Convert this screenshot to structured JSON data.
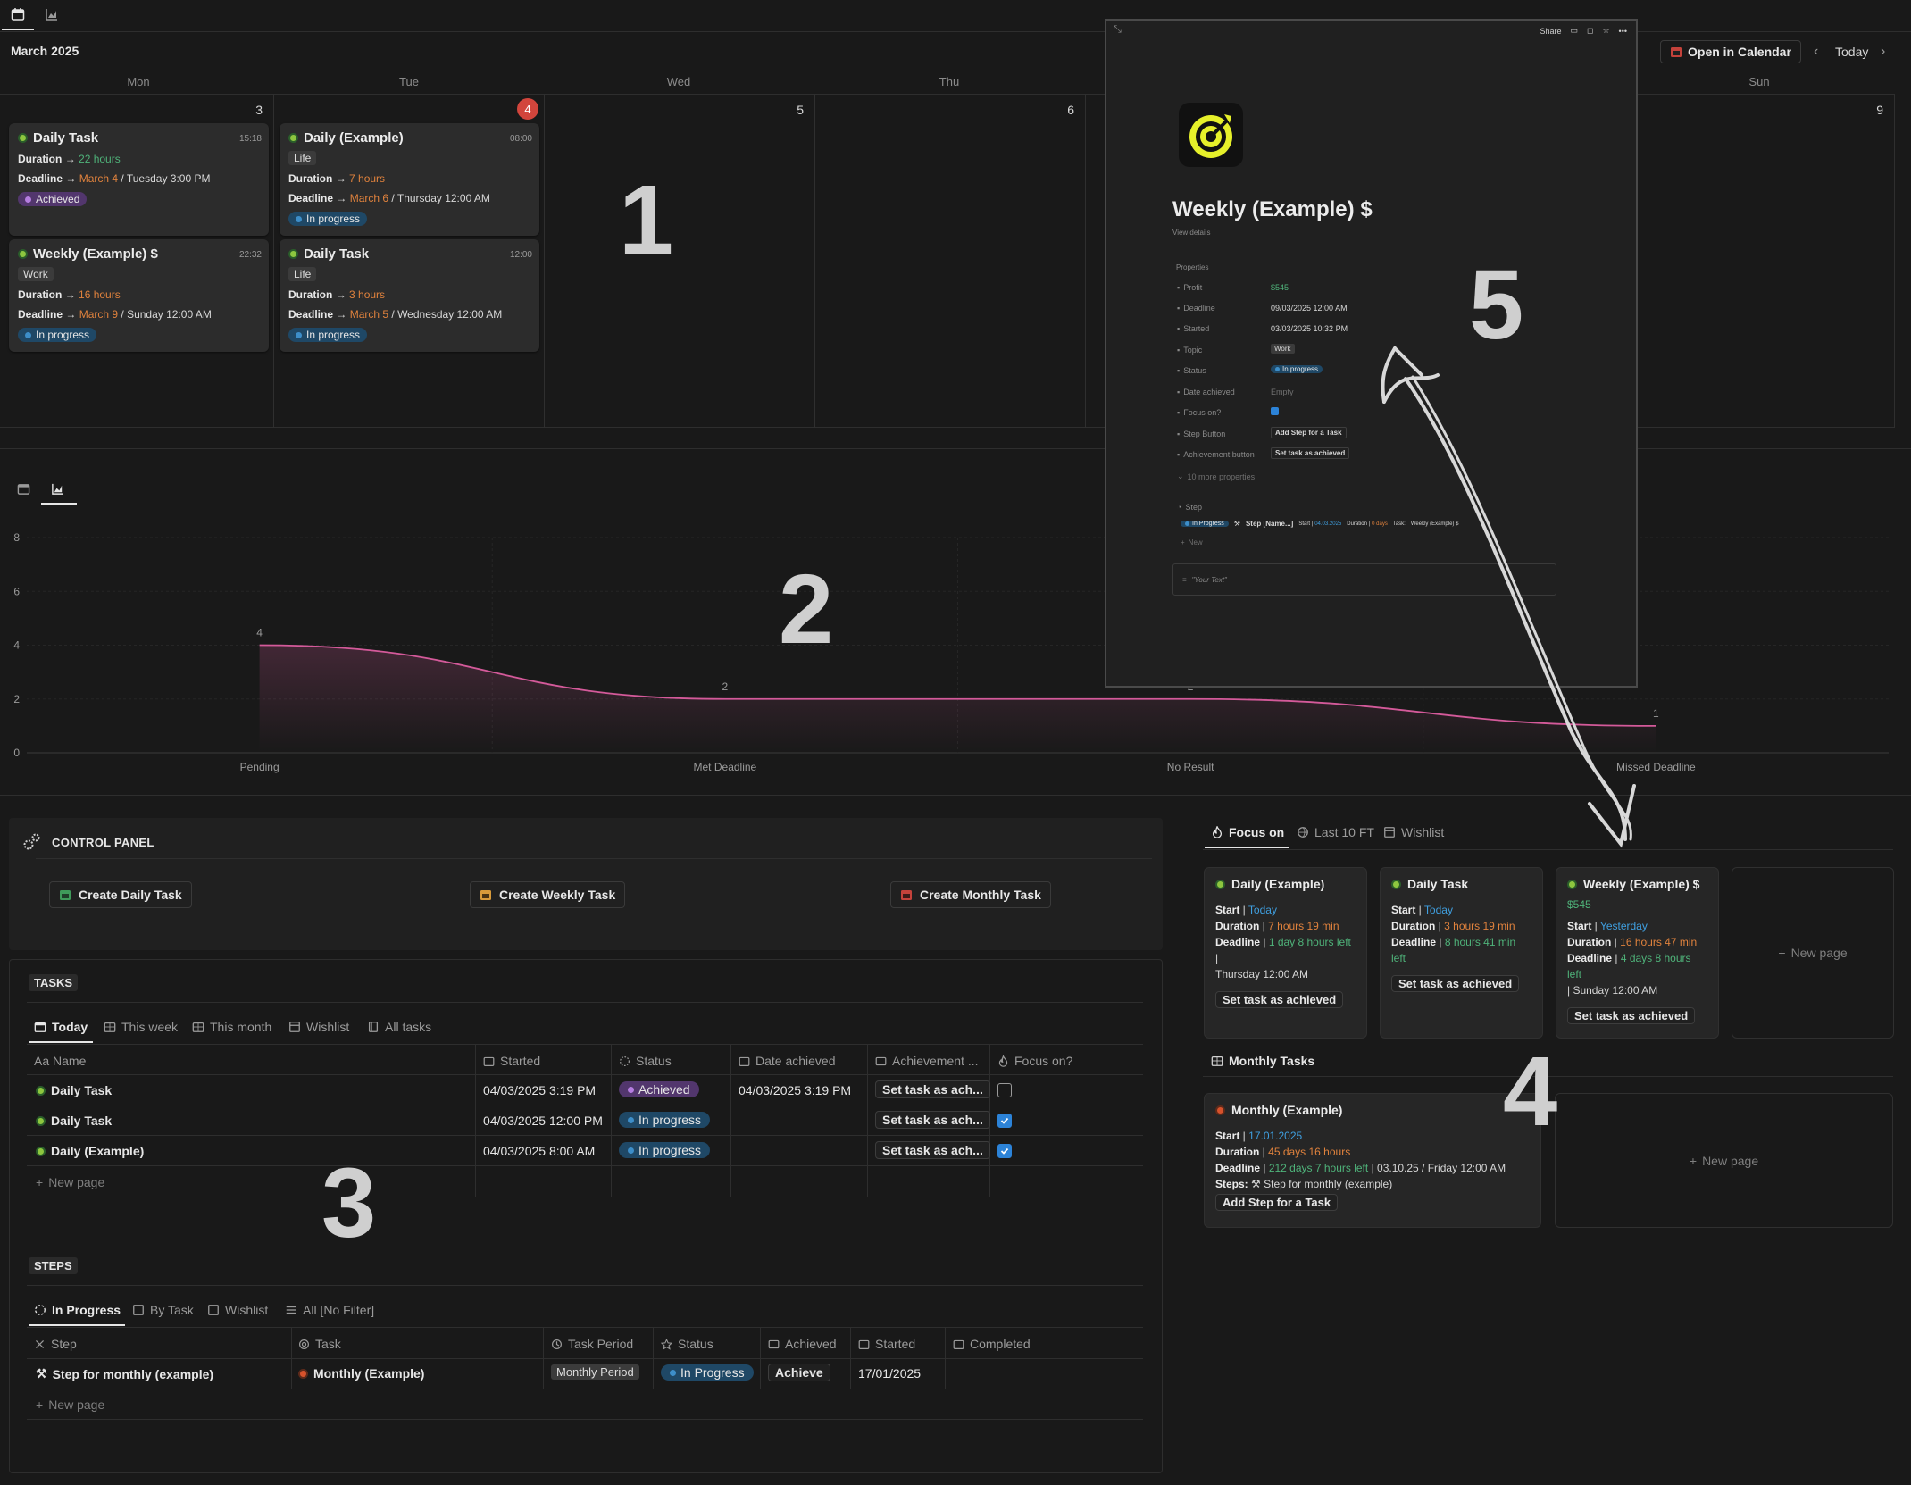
{
  "calendar": {
    "month": "March 2025",
    "open_label": "Open in Calendar",
    "today_label": "Today",
    "days": [
      "Mon",
      "Tue",
      "Wed",
      "Thu",
      "Sun"
    ],
    "daynums": [
      "3",
      "4",
      "5",
      "6",
      "9"
    ],
    "cards": [
      {
        "title": "Daily Task",
        "time": "15:18",
        "dur": "22 hours",
        "deadline_date": "March 4",
        "deadline_rest": "/ Tuesday 3:00 PM",
        "status": "Achieved"
      },
      {
        "title": "Weekly (Example) $",
        "time": "22:32",
        "tag": "Work",
        "dur": "16 hours",
        "deadline_date": "March 9",
        "deadline_rest": "/ Sunday 12:00 AM",
        "status": "In progress"
      },
      {
        "title": "Daily (Example)",
        "time": "08:00",
        "tag": "Life",
        "dur": "7 hours",
        "deadline_date": "March 6",
        "deadline_rest": "/ Thursday 12:00 AM",
        "status": "In progress"
      },
      {
        "title": "Daily Task",
        "time": "12:00",
        "tag": "Life",
        "dur": "3 hours",
        "deadline_date": "March 5",
        "deadline_rest": "/ Wednesday 12:00 AM",
        "status": "In progress"
      }
    ],
    "duration_label": "Duration",
    "deadline_label": "Deadline",
    "arrow": "→"
  },
  "annotations": [
    "1",
    "2",
    "3",
    "4",
    "5"
  ],
  "chart_data": {
    "type": "area",
    "categories": [
      "Pending",
      "Met Deadline",
      "No Result",
      "Missed Deadline"
    ],
    "values": [
      4,
      2,
      2,
      1
    ],
    "yticks": [
      "8",
      "6",
      "4",
      "2",
      "0"
    ],
    "ylim": [
      0,
      8
    ],
    "color": "#d45a9a"
  },
  "control_panel": {
    "title": "CONTROL PANEL",
    "buttons": [
      "Create Daily Task",
      "Create Weekly Task",
      "Create Monthly Task"
    ]
  },
  "tasks": {
    "title": "TASKS",
    "tabs": [
      "Today",
      "This week",
      "This month",
      "Wishlist",
      "All tasks"
    ],
    "columns": [
      "Aa Name",
      "Started",
      "Status",
      "Date achieved",
      "Achievement ...",
      "Focus on?"
    ],
    "rows": [
      {
        "name": "Daily Task",
        "started": "04/03/2025 3:19 PM",
        "status": "Achieved",
        "achieved": "04/03/2025 3:19 PM",
        "btn": "Set task as ach...",
        "focus": false
      },
      {
        "name": "Daily Task",
        "started": "04/03/2025 12:00 PM",
        "status": "In progress",
        "achieved": "",
        "btn": "Set task as ach...",
        "focus": true
      },
      {
        "name": "Daily (Example)",
        "started": "04/03/2025 8:00 AM",
        "status": "In progress",
        "achieved": "",
        "btn": "Set task as ach...",
        "focus": true
      }
    ],
    "new_page": "New page"
  },
  "steps": {
    "title": "STEPS",
    "tabs": [
      "In Progress",
      "By Task",
      "Wishlist",
      "All [No Filter]"
    ],
    "columns": [
      "Step",
      "Task",
      "Task Period",
      "Status",
      "Achieved",
      "Started",
      "Completed"
    ],
    "row": {
      "step": "Step for monthly (example)",
      "task": "Monthly (Example)",
      "period": "Monthly Period",
      "status": "In Progress",
      "achieve": "Achieve",
      "started": "17/01/2025"
    },
    "new_page": "New page"
  },
  "focus": {
    "tabs": [
      "Focus on",
      "Last 10 FT",
      "Wishlist"
    ],
    "cards": [
      {
        "title": "Daily (Example)",
        "start": "Today",
        "duration": "7 hours 19 min",
        "deadline": "1 day 8 hours left",
        "deadline_rest": "|",
        "deadline_tail": "Thursday 12:00 AM",
        "btn": "Set task as achieved"
      },
      {
        "title": "Daily Task",
        "start": "Today",
        "duration": "3 hours 19 min",
        "deadline": "8 hours 41 min left",
        "btn": "Set task as achieved"
      },
      {
        "title": "Weekly (Example) $",
        "profit": "$545",
        "start": "Yesterday",
        "duration": "16 hours 47 min",
        "deadline": "4 days 8 hours left",
        "deadline_tail": "| Sunday 12:00 AM",
        "btn": "Set task as achieved"
      }
    ],
    "new_page": "New page",
    "start_label": "Start",
    "duration_label": "Duration",
    "deadline_label": "Deadline"
  },
  "monthly": {
    "title": "Monthly Tasks",
    "card": {
      "title": "Monthly (Example)",
      "start": "17.01.2025",
      "duration": "45 days 16 hours",
      "deadline": "212 days 7 hours left",
      "deadline_rest": "| 03.10.25 / Friday 12:00 AM",
      "steps_label": "Steps:",
      "step": "Step for monthly (example)",
      "btn": "Add Step for a Task"
    },
    "new_page": "New page"
  },
  "popup": {
    "toolbar_share": "Share",
    "title": "Weekly (Example) $",
    "view_details": "View details",
    "properties_label": "Properties",
    "props": [
      {
        "k": "Profit",
        "v": "$545"
      },
      {
        "k": "Deadline",
        "v": "09/03/2025 12:00 AM"
      },
      {
        "k": "Started",
        "v": "03/03/2025 10:32 PM"
      },
      {
        "k": "Topic",
        "v": "Work"
      },
      {
        "k": "Status",
        "v": "In progress"
      },
      {
        "k": "Date achieved",
        "v": "Empty"
      },
      {
        "k": "Focus on?",
        "v": ""
      },
      {
        "k": "Step Button",
        "v": "Add Step for a Task"
      },
      {
        "k": "Achievement button",
        "v": "Set task as achieved"
      }
    ],
    "more": "10 more properties",
    "step_label": "Step",
    "step_status": "In Progress",
    "step_name": "Step [Name...]",
    "step_meta_start": "Start |",
    "step_meta_date": "04.03.2025",
    "step_meta_dur": "Duration |",
    "step_meta_days": "0 days",
    "step_meta_task": "Task:",
    "step_meta_taskname": "Weekly (Example) $",
    "new": "New",
    "text_placeholder": "\"Your Text\""
  },
  "colors": {
    "bg": "#191919",
    "card": "#2c2c2c",
    "accent_pink": "#d45a9a",
    "orange": "#e0823d",
    "green": "#4fb37a",
    "blue": "#3f9fe0"
  }
}
